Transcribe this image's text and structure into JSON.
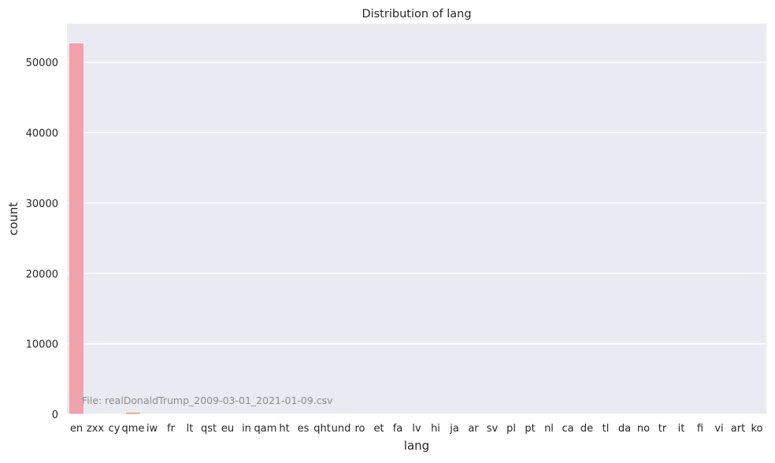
{
  "chart_data": {
    "type": "bar",
    "title": "Distribution of lang",
    "xlabel": "lang",
    "ylabel": "count",
    "categories": [
      "en",
      "zxx",
      "cy",
      "qme",
      "iw",
      "fr",
      "lt",
      "qst",
      "eu",
      "in",
      "qam",
      "ht",
      "es",
      "qht",
      "und",
      "ro",
      "et",
      "fa",
      "lv",
      "hi",
      "ja",
      "ar",
      "sv",
      "pl",
      "pt",
      "nl",
      "ca",
      "de",
      "tl",
      "da",
      "no",
      "tr",
      "it",
      "fi",
      "vi",
      "art",
      "ko"
    ],
    "values": [
      52750,
      60,
      20,
      290,
      25,
      20,
      15,
      15,
      15,
      15,
      15,
      12,
      12,
      12,
      60,
      10,
      10,
      8,
      8,
      8,
      8,
      6,
      6,
      5,
      5,
      5,
      4,
      4,
      4,
      3,
      3,
      3,
      3,
      2,
      2,
      1,
      1
    ],
    "ylim": [
      0,
      55500
    ],
    "yticks": [
      0,
      10000,
      20000,
      30000,
      40000,
      50000
    ],
    "grid": true,
    "colors": {
      "background": "#eaeaf2",
      "grid": "#ffffff",
      "first_bar": "#f0a1ab",
      "bar_edge": "#ffffff"
    },
    "annotation": "File: realDonaldTrump_2009-03-01_2021-01-09.csv"
  }
}
